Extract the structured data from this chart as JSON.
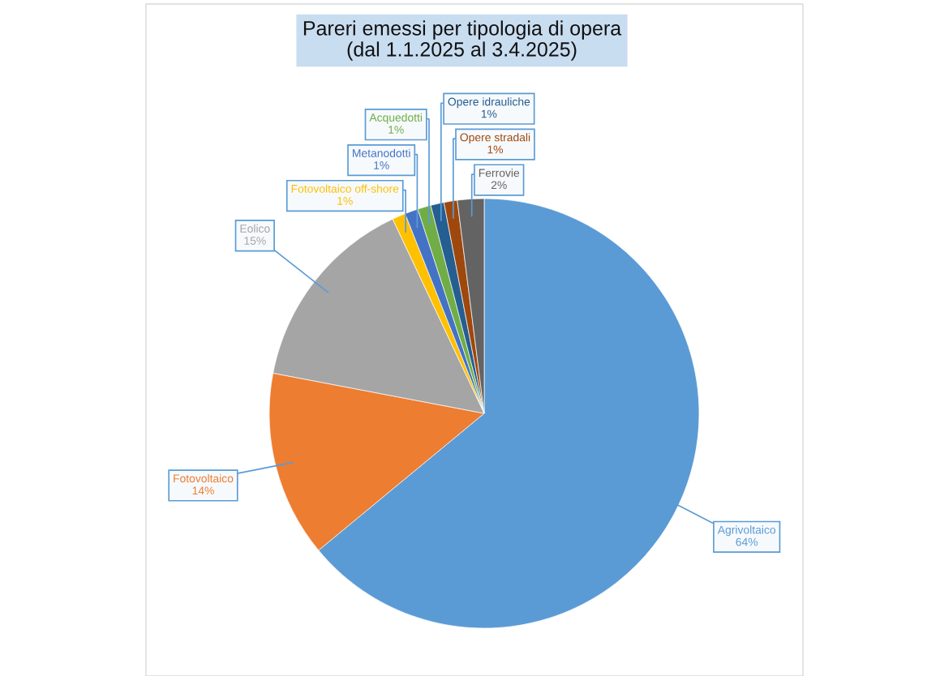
{
  "chart_data": {
    "type": "pie",
    "title": "Pareri emessi per tipologia di opera\n(dal 1.1.2025 al 3.4.2025)",
    "categories": [
      "Agrivoltaico",
      "Fotovoltaico",
      "Eolico",
      "Fotovoltaico off-shore",
      "Metanodotti",
      "Acquedotti",
      "Opere idrauliche",
      "Opere stradali",
      "Ferrovie"
    ],
    "values": [
      64,
      14,
      15,
      1,
      1,
      1,
      1,
      1,
      2
    ],
    "colors": [
      "#5b9bd5",
      "#ed7d31",
      "#a5a5a5",
      "#ffc000",
      "#4472c4",
      "#70ad47",
      "#255e91",
      "#9e480e",
      "#636363"
    ],
    "value_labels": [
      "64%",
      "14%",
      "15%",
      "1%",
      "1%",
      "1%",
      "1%",
      "1%",
      "2%"
    ]
  }
}
